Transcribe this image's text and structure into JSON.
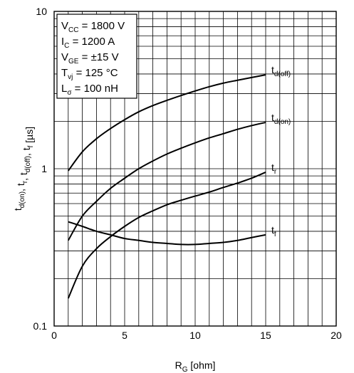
{
  "chart_data": {
    "type": "line",
    "xlabel": "RG [ohm]",
    "ylabel": "td(on), tr, td(off), tf [µs]",
    "xlim": [
      0,
      20
    ],
    "ylim": [
      0.1,
      10
    ],
    "yscale": "log",
    "grid": true,
    "x_ticks": [
      "0",
      "5",
      "10",
      "15",
      "20"
    ],
    "y_ticks": [
      "0.1",
      "1",
      "10"
    ],
    "conditions": [
      "VCC = 1800 V",
      "IC = 1200 A",
      "VGE = ±15 V",
      "Tvj = 125 °C",
      "Lσ = 100 nH"
    ],
    "series": [
      {
        "name": "td(off)",
        "x": [
          1,
          2,
          3,
          4,
          5,
          6,
          7,
          8,
          9,
          10,
          11,
          12,
          13,
          14,
          15
        ],
        "values": [
          0.97,
          1.28,
          1.55,
          1.8,
          2.05,
          2.3,
          2.52,
          2.72,
          2.92,
          3.12,
          3.32,
          3.5,
          3.65,
          3.8,
          3.95
        ]
      },
      {
        "name": "td(on)",
        "x": [
          1,
          2,
          3,
          4,
          5,
          6,
          7,
          8,
          9,
          10,
          11,
          12,
          13,
          14,
          15
        ],
        "values": [
          0.35,
          0.5,
          0.62,
          0.75,
          0.87,
          1.0,
          1.12,
          1.24,
          1.35,
          1.46,
          1.57,
          1.67,
          1.78,
          1.88,
          1.97
        ]
      },
      {
        "name": "tr",
        "x": [
          1,
          2,
          3,
          4,
          5,
          6,
          7,
          8,
          9,
          10,
          11,
          12,
          13,
          14,
          15
        ],
        "values": [
          0.15,
          0.24,
          0.31,
          0.37,
          0.43,
          0.49,
          0.54,
          0.59,
          0.63,
          0.67,
          0.71,
          0.76,
          0.81,
          0.87,
          0.95
        ]
      },
      {
        "name": "tf",
        "x": [
          1,
          2,
          3,
          4,
          5,
          6,
          7,
          8,
          9,
          10,
          11,
          12,
          13,
          14,
          15
        ],
        "values": [
          0.46,
          0.43,
          0.4,
          0.38,
          0.36,
          0.35,
          0.34,
          0.335,
          0.33,
          0.33,
          0.335,
          0.34,
          0.35,
          0.365,
          0.38
        ]
      }
    ]
  }
}
